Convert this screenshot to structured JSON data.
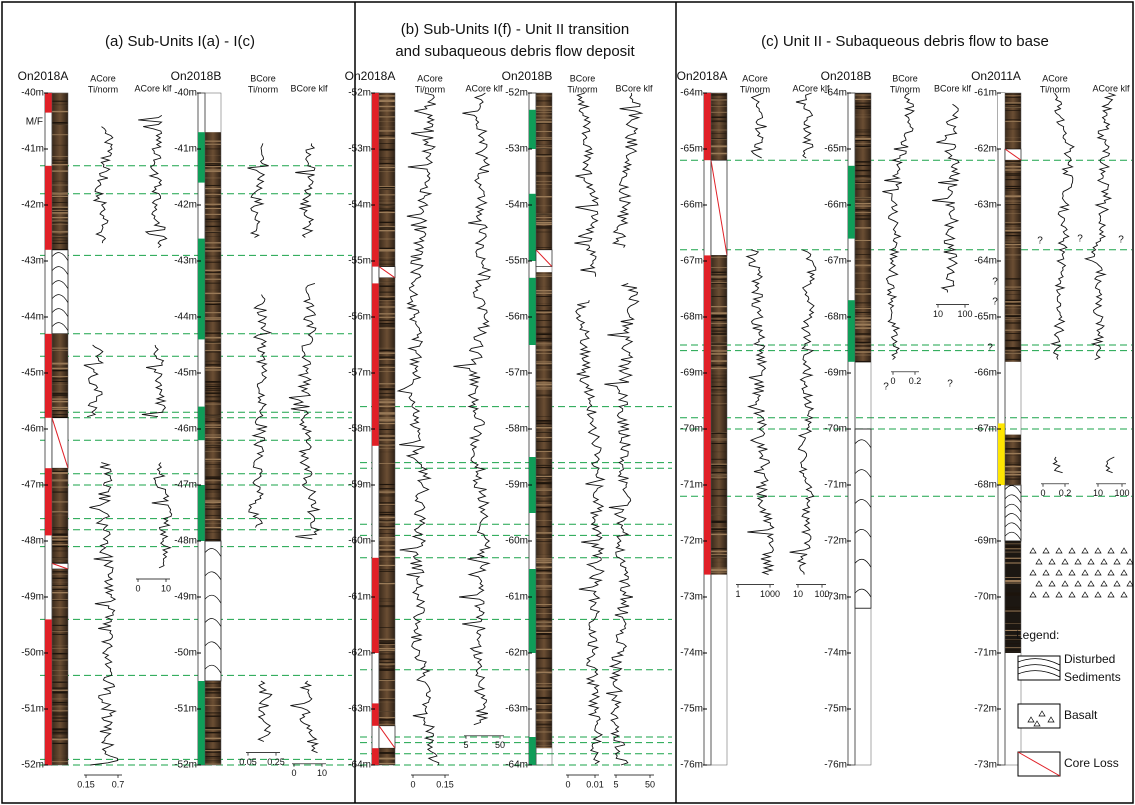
{
  "panels": [
    {
      "title": [
        "(a) Sub-Units I(a) - I(c)"
      ],
      "cores": [
        {
          "name": "On2018A",
          "depths": [
            "-40m",
            "-41m",
            "-42m",
            "-43m",
            "-44m",
            "-45m",
            "-46m",
            "-47m",
            "-48m",
            "-49m",
            "-50m",
            "-51m",
            "-52m"
          ],
          "marker": "M/F",
          "logs": [
            {
              "header": [
                "ACore",
                "Ti/norm"
              ],
              "axis": [
                "0.15",
                "0.7"
              ]
            },
            {
              "header": [
                "ACore klf"
              ],
              "axis": [
                "0",
                "10"
              ]
            }
          ]
        },
        {
          "name": "On2018B",
          "depths": [
            "-40m",
            "-41m",
            "-42m",
            "-43m",
            "-44m",
            "-45m",
            "-46m",
            "-47m",
            "-48m",
            "-49m",
            "-50m",
            "-51m",
            "-52m"
          ],
          "logs": [
            {
              "header": [
                "BCore",
                "Ti/norm"
              ],
              "axis": [
                "0.05",
                "0.25"
              ]
            },
            {
              "header": [
                "BCore klf"
              ],
              "axis": [
                "0",
                "10"
              ]
            }
          ]
        }
      ]
    },
    {
      "title": [
        "(b) Sub-Units I(f) - Unit II transition",
        "and subaqueous debris flow deposit"
      ],
      "cores": [
        {
          "name": "On2018A",
          "depths": [
            "-52m",
            "-53m",
            "-54m",
            "-55m",
            "-56m",
            "-57m",
            "-58m",
            "-59m",
            "-60m",
            "-61m",
            "-62m",
            "-63m",
            "-64m"
          ],
          "logs": [
            {
              "header": [
                "ACore",
                "Ti/norm"
              ],
              "axis": [
                "0",
                "0.15"
              ]
            },
            {
              "header": [
                "ACore klf"
              ],
              "axis": [
                "5",
                "50"
              ]
            }
          ]
        },
        {
          "name": "On2018B",
          "depths": [
            "-52m",
            "-53m",
            "-54m",
            "-55m",
            "-56m",
            "-57m",
            "-58m",
            "-59m",
            "-60m",
            "-61m",
            "-62m",
            "-63m",
            "-64m"
          ],
          "logs": [
            {
              "header": [
                "BCore",
                "Ti/norm"
              ],
              "axis": [
                "0",
                "0.01"
              ]
            },
            {
              "header": [
                "BCore klf"
              ],
              "axis": [
                "5",
                "50"
              ]
            }
          ]
        }
      ]
    },
    {
      "title": [
        "(c) Unit II - Subaqueous debris flow to base"
      ],
      "cores": [
        {
          "name": "On2018A",
          "depths": [
            "-64m",
            "-65m",
            "-66m",
            "-67m",
            "-68m",
            "-69m",
            "-70m",
            "-71m",
            "-72m",
            "-73m",
            "-74m",
            "-75m",
            "-76m"
          ],
          "logs": [
            {
              "header": [
                "ACore",
                "Ti/norm"
              ],
              "axis": [
                "1",
                "1000"
              ]
            },
            {
              "header": [
                "ACore klf"
              ],
              "axis": [
                "10",
                "100"
              ]
            }
          ]
        },
        {
          "name": "On2018B",
          "depths": [
            "-64m",
            "-65m",
            "-66m",
            "-67m",
            "-68m",
            "-69m",
            "-70m",
            "-71m",
            "-72m",
            "-73m",
            "-74m",
            "-75m",
            "-76m"
          ],
          "logs": [
            {
              "header": [
                "BCore",
                "Ti/norm"
              ],
              "axis": [
                "0",
                "0.2"
              ]
            },
            {
              "header": [
                "BCore klf"
              ],
              "axis": [
                "10",
                "100"
              ]
            }
          ]
        },
        {
          "name": "On2011A",
          "depths": [
            "-61m",
            "-62m",
            "-63m",
            "-64m",
            "-65m",
            "-66m",
            "-67m",
            "-68m",
            "-69m",
            "-70m",
            "-71m",
            "-72m",
            "-73m"
          ],
          "logs": [
            {
              "header": [
                "ACore",
                "Ti/norm"
              ],
              "axis": [
                "0",
                "0.2"
              ]
            },
            {
              "header": [
                "ACore klf"
              ],
              "axis": [
                "10",
                "100"
              ]
            }
          ]
        }
      ]
    }
  ],
  "question_mark": "?",
  "legend": {
    "title": "Legend:",
    "items": [
      [
        "Disturbed",
        "Sediments"
      ],
      [
        "Basalt"
      ],
      [
        "Core Loss"
      ]
    ]
  }
}
